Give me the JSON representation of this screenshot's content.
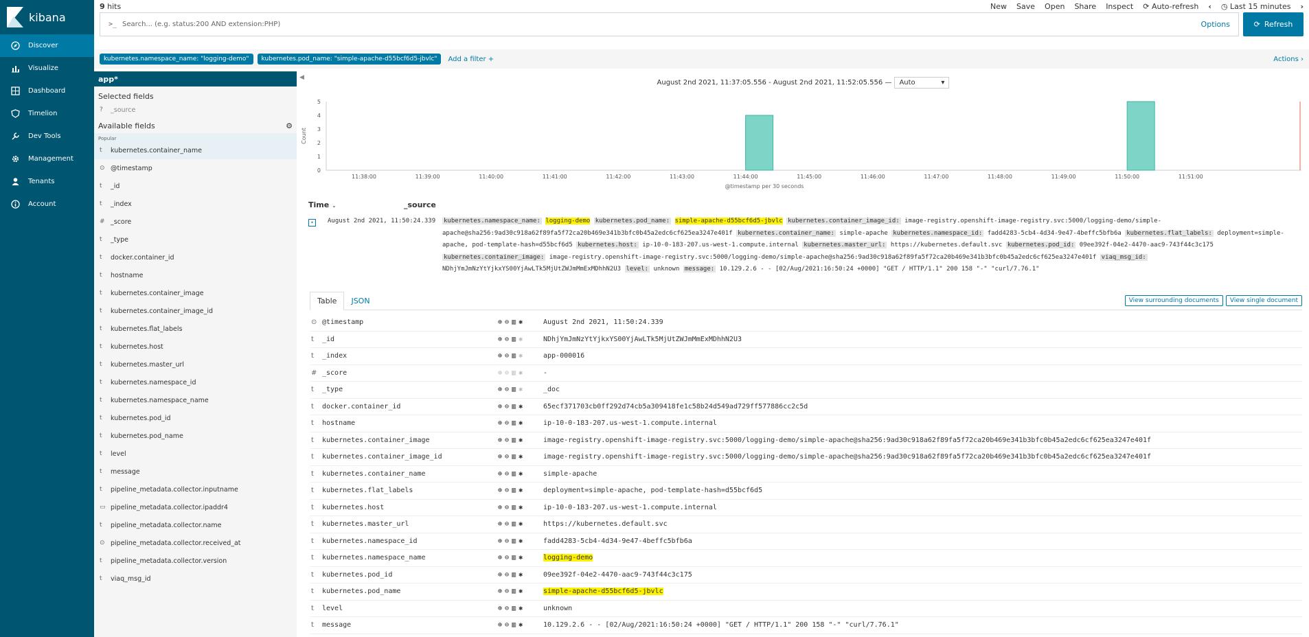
{
  "nav": {
    "logo_text": "kibana",
    "items": [
      {
        "label": "Discover",
        "icon": "compass-icon",
        "active": true
      },
      {
        "label": "Visualize",
        "icon": "bar-chart-icon"
      },
      {
        "label": "Dashboard",
        "icon": "dashboard-icon"
      },
      {
        "label": "Timelion",
        "icon": "shield-icon"
      },
      {
        "label": "Dev Tools",
        "icon": "wrench-icon"
      },
      {
        "label": "Management",
        "icon": "gear-icon"
      },
      {
        "label": "Tenants",
        "icon": "user-icon"
      },
      {
        "label": "Account",
        "icon": "info-icon"
      }
    ]
  },
  "topbar": {
    "hits_count": "9",
    "hits_label": "hits",
    "menu": {
      "new": "New",
      "save": "Save",
      "open": "Open",
      "share": "Share",
      "inspect": "Inspect",
      "auto_refresh": "Auto-refresh",
      "time_range": "Last 15 minutes"
    }
  },
  "search": {
    "prompt": ">_",
    "placeholder": "Search... (e.g. status:200 AND extension:PHP)",
    "options": "Options",
    "refresh": "Refresh"
  },
  "filters": {
    "pills": [
      "kubernetes.namespace_name: \"logging-demo\"",
      "kubernetes.pod_name: \"simple-apache-d55bcf6d5-jbvlc\""
    ],
    "add_filter": "Add a filter +",
    "actions": "Actions ›"
  },
  "sidebar": {
    "index_pattern": "app*",
    "selected_title": "Selected fields",
    "selected_fields": [
      {
        "type": "?",
        "name": "_source"
      }
    ],
    "available_title": "Available fields",
    "popular_label": "Popular",
    "fields": [
      {
        "type": "t",
        "name": "kubernetes.container_name"
      },
      {
        "type": "⊙",
        "name": "@timestamp"
      },
      {
        "type": "t",
        "name": "_id"
      },
      {
        "type": "t",
        "name": "_index"
      },
      {
        "type": "#",
        "name": "_score"
      },
      {
        "type": "t",
        "name": "_type"
      },
      {
        "type": "t",
        "name": "docker.container_id"
      },
      {
        "type": "t",
        "name": "hostname"
      },
      {
        "type": "t",
        "name": "kubernetes.container_image"
      },
      {
        "type": "t",
        "name": "kubernetes.container_image_id"
      },
      {
        "type": "t",
        "name": "kubernetes.flat_labels"
      },
      {
        "type": "t",
        "name": "kubernetes.host"
      },
      {
        "type": "t",
        "name": "kubernetes.master_url"
      },
      {
        "type": "t",
        "name": "kubernetes.namespace_id"
      },
      {
        "type": "t",
        "name": "kubernetes.namespace_name"
      },
      {
        "type": "t",
        "name": "kubernetes.pod_id"
      },
      {
        "type": "t",
        "name": "kubernetes.pod_name"
      },
      {
        "type": "t",
        "name": "level"
      },
      {
        "type": "t",
        "name": "message"
      },
      {
        "type": "t",
        "name": "pipeline_metadata.collector.inputname"
      },
      {
        "type": "▭",
        "name": "pipeline_metadata.collector.ipaddr4"
      },
      {
        "type": "t",
        "name": "pipeline_metadata.collector.name"
      },
      {
        "type": "⊙",
        "name": "pipeline_metadata.collector.received_at"
      },
      {
        "type": "t",
        "name": "pipeline_metadata.collector.version"
      },
      {
        "type": "t",
        "name": "viaq_msg_id"
      }
    ]
  },
  "chart_header": {
    "range": "August 2nd 2021, 11:37:05.556 - August 2nd 2021, 11:52:05.556 —",
    "interval": "Auto"
  },
  "chart_data": {
    "type": "bar",
    "ylabel": "Count",
    "xlabel": "@timestamp per 30 seconds",
    "ylim": [
      0,
      5
    ],
    "yticks": [
      0,
      1,
      2,
      3,
      4,
      5
    ],
    "xticks": [
      "11:38:00",
      "11:39:00",
      "11:40:00",
      "11:41:00",
      "11:42:00",
      "11:43:00",
      "11:44:00",
      "11:45:00",
      "11:46:00",
      "11:47:00",
      "11:48:00",
      "11:49:00",
      "11:50:00",
      "11:51:00"
    ],
    "bars": [
      {
        "x": "11:44:00",
        "value": 4
      },
      {
        "x": "11:50:00",
        "value": 5
      }
    ],
    "bar_color": "#7fd4c8"
  },
  "doc_table": {
    "time_header": "Time",
    "source_header": "_source",
    "row_time": "August 2nd 2021, 11:50:24.339"
  },
  "source_pairs": [
    {
      "k": "kubernetes.namespace_name:",
      "v": "logging-demo",
      "hl": true
    },
    {
      "k": "kubernetes.pod_name:",
      "v": "simple-apache-d55bcf6d5-jbvlc",
      "hl": true
    },
    {
      "k": "kubernetes.container_image_id:",
      "v": "image-registry.openshift-image-registry.svc:5000/logging-demo/simple-apache@sha256:9ad30c918a62f89fa5f72ca20b469e341b3bfc0b45a2edc6cf625ea3247e401f"
    },
    {
      "k": "kubernetes.container_name:",
      "v": "simple-apache"
    },
    {
      "k": "kubernetes.namespace_id:",
      "v": "fadd4283-5cb4-4d34-9e47-4beffc5bfb6a"
    },
    {
      "k": "kubernetes.flat_labels:",
      "v": "deployment=simple-apache, pod-template-hash=d55bcf6d5"
    },
    {
      "k": "kubernetes.host:",
      "v": "ip-10-0-183-207.us-west-1.compute.internal"
    },
    {
      "k": "kubernetes.master_url:",
      "v": "https://kubernetes.default.svc"
    },
    {
      "k": "kubernetes.pod_id:",
      "v": "09ee392f-04e2-4470-aac9-743f44c3c175"
    },
    {
      "k": "kubernetes.container_image:",
      "v": "image-registry.openshift-image-registry.svc:5000/logging-demo/simple-apache@sha256:9ad30c918a62f89fa5f72ca20b469e341b3bfc0b45a2edc6cf625ea3247e401f"
    },
    {
      "k": "viaq_msg_id:",
      "v": "NDhjYmJmNzYtYjkxYS00YjAwLTk5MjUtZWJmMmExMDhhN2U3"
    },
    {
      "k": "level:",
      "v": "unknown"
    },
    {
      "k": "message:",
      "v": "10.129.2.6 - - [02/Aug/2021:16:50:24 +0000] \"GET / HTTP/1.1\" 200 158 \"-\" \"curl/7.76.1\""
    }
  ],
  "detail_tabs": {
    "table": "Table",
    "json": "JSON",
    "surrounding": "View surrounding documents",
    "single": "View single document"
  },
  "detail_rows": [
    {
      "type": "⊙",
      "field": "@timestamp",
      "value": "August 2nd 2021, 11:50:24.339"
    },
    {
      "type": "t",
      "field": "_id",
      "value": "NDhjYmJmNzYtYjkxYS00YjAwLTk5MjUtZWJmMmExMDhhN2U3"
    },
    {
      "type": "t",
      "field": "_index",
      "value": "app-000016"
    },
    {
      "type": "#",
      "field": "_score",
      "value": " -"
    },
    {
      "type": "t",
      "field": "_type",
      "value": "_doc"
    },
    {
      "type": "t",
      "field": "docker.container_id",
      "value": "65ecf371703cb0ff292d74cb5a309418fe1c58b24d549ad729ff577886cc2c5d"
    },
    {
      "type": "t",
      "field": "hostname",
      "value": "ip-10-0-183-207.us-west-1.compute.internal"
    },
    {
      "type": "t",
      "field": "kubernetes.container_image",
      "value": "image-registry.openshift-image-registry.svc:5000/logging-demo/simple-apache@sha256:9ad30c918a62f89fa5f72ca20b469e341b3bfc0b45a2edc6cf625ea3247e401f"
    },
    {
      "type": "t",
      "field": "kubernetes.container_image_id",
      "value": "image-registry.openshift-image-registry.svc:5000/logging-demo/simple-apache@sha256:9ad30c918a62f89fa5f72ca20b469e341b3bfc0b45a2edc6cf625ea3247e401f"
    },
    {
      "type": "t",
      "field": "kubernetes.container_name",
      "value": "simple-apache"
    },
    {
      "type": "t",
      "field": "kubernetes.flat_labels",
      "value": "deployment=simple-apache, pod-template-hash=d55bcf6d5"
    },
    {
      "type": "t",
      "field": "kubernetes.host",
      "value": "ip-10-0-183-207.us-west-1.compute.internal"
    },
    {
      "type": "t",
      "field": "kubernetes.master_url",
      "value": "https://kubernetes.default.svc"
    },
    {
      "type": "t",
      "field": "kubernetes.namespace_id",
      "value": "fadd4283-5cb4-4d34-9e47-4beffc5bfb6a"
    },
    {
      "type": "t",
      "field": "kubernetes.namespace_name",
      "value": "logging-demo",
      "hl": true
    },
    {
      "type": "t",
      "field": "kubernetes.pod_id",
      "value": "09ee392f-04e2-4470-aac9-743f44c3c175"
    },
    {
      "type": "t",
      "field": "kubernetes.pod_name",
      "value": "simple-apache-d55bcf6d5-jbvlc",
      "hl": true
    },
    {
      "type": "t",
      "field": "level",
      "value": "unknown"
    },
    {
      "type": "t",
      "field": "message",
      "value": "10.129.2.6 - - [02/Aug/2021:16:50:24 +0000] \"GET / HTTP/1.1\" 200 158 \"-\" \"curl/7.76.1\""
    }
  ]
}
